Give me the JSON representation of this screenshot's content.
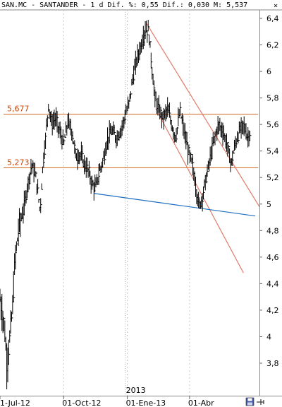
{
  "header": {
    "text": "SAN.MC - SANTANDER -  1 d Dif. %: 0,55 Dif.: 0,030 M: 5,537",
    "close_label": "×"
  },
  "colors": {
    "price": "#000000",
    "level_line": "#d2691e",
    "level_text": "#cc4400",
    "channel": "#e07a6a",
    "support": "#1f6fbf",
    "grid": "#c8c8c8",
    "year_divider": "#b0b0b0"
  },
  "toolbar": {
    "icons": [
      "floppy-disk-icon",
      "pin-icon"
    ]
  },
  "chart_data": {
    "type": "ohlc",
    "title": "SAN.MC - SANTANDER",
    "y_ticks": [
      "6,4",
      "6,2",
      "6",
      "5,8",
      "5,6",
      "5,4",
      "5,2",
      "5",
      "4,8",
      "4,6",
      "4,4",
      "4,2",
      "4",
      "3,8"
    ],
    "y_tick_values": [
      6.4,
      6.2,
      6.0,
      5.8,
      5.6,
      5.4,
      5.2,
      5.0,
      4.8,
      4.6,
      4.4,
      4.2,
      4.0,
      3.8
    ],
    "ylim": [
      3.7,
      6.5
    ],
    "x_ticks": [
      {
        "label": "1-Jul-12",
        "day": 0
      },
      {
        "label": "01-Oct-12",
        "day": 92
      },
      {
        "label": "01-Ene-13",
        "day": 184
      },
      {
        "label": "01-Abr",
        "day": 274
      }
    ],
    "year_marker": {
      "label": "2013",
      "day": 181
    },
    "xlim": [
      0,
      375
    ],
    "levels": [
      {
        "label": "5,677",
        "value": 5.677
      },
      {
        "label": "5,273",
        "value": 5.273
      }
    ],
    "channel_lines": [
      {
        "from": [
          212,
          6.36
        ],
        "to": [
          375,
          4.98
        ]
      },
      {
        "from": [
          225,
          5.72
        ],
        "to": [
          352,
          4.48
        ]
      }
    ],
    "support_line": {
      "from": [
        136,
        5.08
      ],
      "to": [
        369,
        4.91
      ]
    },
    "series": [
      {
        "x": 0,
        "y": 4.28
      },
      {
        "x": 6,
        "y": 4.1
      },
      {
        "x": 10,
        "y": 3.8
      },
      {
        "x": 14,
        "y": 3.98
      },
      {
        "x": 18,
        "y": 4.2
      },
      {
        "x": 22,
        "y": 4.6
      },
      {
        "x": 28,
        "y": 4.85
      },
      {
        "x": 34,
        "y": 4.95
      },
      {
        "x": 40,
        "y": 5.15
      },
      {
        "x": 46,
        "y": 5.3
      },
      {
        "x": 52,
        "y": 5.2
      },
      {
        "x": 58,
        "y": 4.95
      },
      {
        "x": 62,
        "y": 5.3
      },
      {
        "x": 66,
        "y": 5.5
      },
      {
        "x": 70,
        "y": 5.75
      },
      {
        "x": 75,
        "y": 5.6
      },
      {
        "x": 80,
        "y": 5.65
      },
      {
        "x": 86,
        "y": 5.55
      },
      {
        "x": 92,
        "y": 5.45
      },
      {
        "x": 98,
        "y": 5.62
      },
      {
        "x": 104,
        "y": 5.55
      },
      {
        "x": 110,
        "y": 5.35
      },
      {
        "x": 116,
        "y": 5.38
      },
      {
        "x": 122,
        "y": 5.3
      },
      {
        "x": 128,
        "y": 5.25
      },
      {
        "x": 133,
        "y": 5.15
      },
      {
        "x": 138,
        "y": 5.12
      },
      {
        "x": 144,
        "y": 5.25
      },
      {
        "x": 150,
        "y": 5.35
      },
      {
        "x": 156,
        "y": 5.5
      },
      {
        "x": 162,
        "y": 5.55
      },
      {
        "x": 168,
        "y": 5.5
      },
      {
        "x": 174,
        "y": 5.55
      },
      {
        "x": 180,
        "y": 5.65
      },
      {
        "x": 186,
        "y": 5.75
      },
      {
        "x": 192,
        "y": 5.95
      },
      {
        "x": 198,
        "y": 6.1
      },
      {
        "x": 204,
        "y": 6.2
      },
      {
        "x": 210,
        "y": 6.32
      },
      {
        "x": 215,
        "y": 6.3
      },
      {
        "x": 220,
        "y": 6.0
      },
      {
        "x": 224,
        "y": 5.8
      },
      {
        "x": 230,
        "y": 5.7
      },
      {
        "x": 236,
        "y": 5.65
      },
      {
        "x": 242,
        "y": 5.72
      },
      {
        "x": 248,
        "y": 5.6
      },
      {
        "x": 254,
        "y": 5.5
      },
      {
        "x": 260,
        "y": 5.7
      },
      {
        "x": 266,
        "y": 5.55
      },
      {
        "x": 272,
        "y": 5.4
      },
      {
        "x": 278,
        "y": 5.3
      },
      {
        "x": 284,
        "y": 5.1
      },
      {
        "x": 288,
        "y": 4.98
      },
      {
        "x": 292,
        "y": 5.05
      },
      {
        "x": 298,
        "y": 5.2
      },
      {
        "x": 304,
        "y": 5.35
      },
      {
        "x": 310,
        "y": 5.5
      },
      {
        "x": 316,
        "y": 5.6
      },
      {
        "x": 322,
        "y": 5.55
      },
      {
        "x": 328,
        "y": 5.45
      },
      {
        "x": 334,
        "y": 5.3
      },
      {
        "x": 340,
        "y": 5.45
      },
      {
        "x": 346,
        "y": 5.55
      },
      {
        "x": 352,
        "y": 5.6
      },
      {
        "x": 358,
        "y": 5.5
      },
      {
        "x": 362,
        "y": 5.55
      }
    ]
  }
}
